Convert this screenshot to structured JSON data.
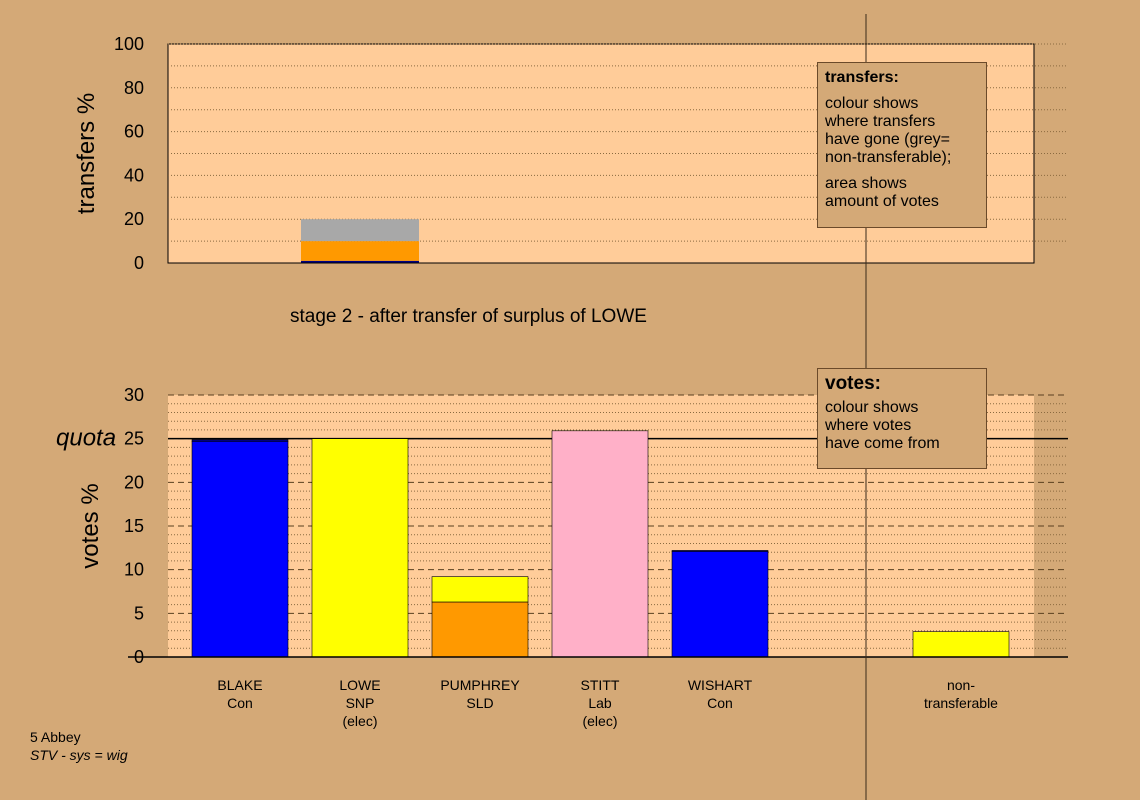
{
  "footer": {
    "constituency": "5 Abbey",
    "system": "STV - sys = wig"
  },
  "stage_label": "stage 2 - after transfer of surplus of LOWE",
  "legends": {
    "transfers": {
      "title": "transfers:",
      "lines": [
        "colour shows",
        "where transfers",
        "have gone (grey=",
        "non-transferable);",
        "area shows",
        "amount of votes"
      ]
    },
    "votes": {
      "title": "votes:",
      "lines": [
        "colour shows",
        "where votes",
        "have come from"
      ]
    }
  },
  "colors": {
    "background": "#d4a977",
    "plot": "#ffcc99",
    "Con": "#0000ff",
    "SNP": "#ffff00",
    "SLD": "#ff9900",
    "Lab": "#ffb0c8",
    "non_transferable": "#a8a8a8",
    "navy": "#000080"
  },
  "chart_data": [
    {
      "type": "bar",
      "stacked": true,
      "ylabel": "transfers %",
      "ylim": [
        0,
        100
      ],
      "yticks": [
        0,
        20,
        40,
        60,
        80,
        100
      ],
      "grid": "dotted",
      "bars": [
        {
          "position": "LOWE",
          "width_share": 0.035,
          "segments": [
            {
              "name": "Con",
              "color": "#000080",
              "value": 1
            },
            {
              "name": "SLD",
              "color": "#ff9900",
              "value": 9
            },
            {
              "name": "non-transferable",
              "color": "#a8a8a8",
              "value": 10
            }
          ]
        }
      ]
    },
    {
      "type": "bar",
      "stacked": true,
      "ylabel": "votes %",
      "ylim": [
        0,
        30
      ],
      "yticks": [
        0,
        5,
        10,
        15,
        20,
        25,
        30
      ],
      "quota": {
        "label": "quota",
        "value": 25
      },
      "grid": "dashed",
      "categories": [
        {
          "name": "BLAKE",
          "party": "Con",
          "status": ""
        },
        {
          "name": "LOWE",
          "party": "SNP",
          "status": "(elec)"
        },
        {
          "name": "PUMPHREY",
          "party": "SLD",
          "status": ""
        },
        {
          "name": "STITT",
          "party": "Lab",
          "status": "(elec)"
        },
        {
          "name": "WISHART",
          "party": "Con",
          "status": ""
        },
        {
          "name": "non-",
          "party": "transferable",
          "status": ""
        }
      ],
      "bars": [
        {
          "candidate": "BLAKE",
          "segments": [
            {
              "source": "Con",
              "color": "#0000ff",
              "value": 24.7
            },
            {
              "source": "transfer",
              "color": "#000080",
              "value": 0.2
            }
          ]
        },
        {
          "candidate": "LOWE",
          "segments": [
            {
              "source": "SNP",
              "color": "#ffff00",
              "value": 25.0
            }
          ]
        },
        {
          "candidate": "PUMPHREY",
          "segments": [
            {
              "source": "SLD",
              "color": "#ff9900",
              "value": 6.3
            },
            {
              "source": "SNP",
              "color": "#ffff00",
              "value": 2.9
            }
          ]
        },
        {
          "candidate": "STITT",
          "segments": [
            {
              "source": "Lab",
              "color": "#ffb0c8",
              "value": 25.9
            }
          ]
        },
        {
          "candidate": "WISHART",
          "segments": [
            {
              "source": "Con",
              "color": "#0000ff",
              "value": 12.1
            },
            {
              "source": "transfer",
              "color": "#000080",
              "value": 0.1
            }
          ]
        },
        {
          "candidate": "non-transferable",
          "segments": [
            {
              "source": "SNP",
              "color": "#ffff00",
              "value": 2.9
            }
          ]
        }
      ]
    }
  ]
}
